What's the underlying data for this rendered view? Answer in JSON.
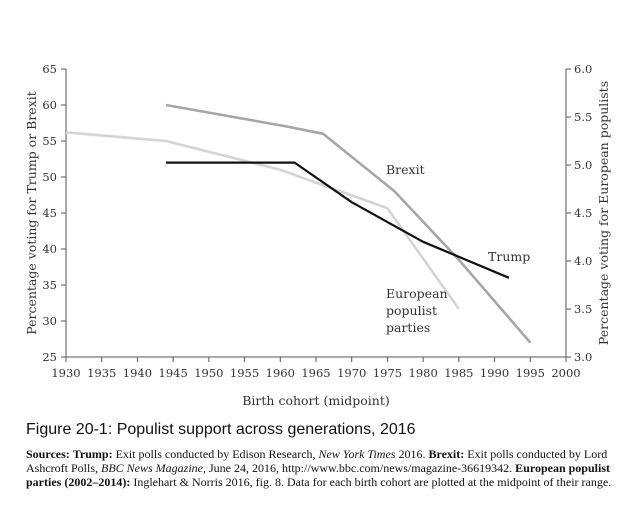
{
  "chart_data": {
    "type": "line",
    "title": "",
    "xlabel": "Birth cohort (midpoint)",
    "ylabel_left": "Percentage voting for Trump or Brexit",
    "ylabel_right": "Percentage voting for European populists",
    "xlim": [
      1930,
      2000
    ],
    "xticks": [
      "1930",
      "1935",
      "1940",
      "1945",
      "1950",
      "1955",
      "1960",
      "1965",
      "1970",
      "1975",
      "1980",
      "1985",
      "1990",
      "1995",
      "2000"
    ],
    "ylim_left": [
      25,
      65
    ],
    "yticks_left": [
      "25",
      "30",
      "35",
      "40",
      "45",
      "50",
      "55",
      "60",
      "65"
    ],
    "ylim_right": [
      3.0,
      6.0
    ],
    "yticks_right": [
      "3.0",
      "3.5",
      "4.0",
      "4.5",
      "5.0",
      "5.5",
      "6.0"
    ],
    "grid": false,
    "series": [
      {
        "name": "Brexit",
        "axis": "left",
        "color": "#a6a6a6",
        "x": [
          1944,
          1961,
          1966,
          1976,
          1985,
          1995
        ],
        "y": [
          60,
          57,
          56,
          48,
          38.5,
          27
        ]
      },
      {
        "name": "Trump",
        "axis": "left",
        "color": "#111111",
        "x": [
          1944,
          1962,
          1970,
          1980,
          1992
        ],
        "y": [
          52,
          52,
          46.5,
          41,
          36
        ]
      },
      {
        "name": "European populist parties",
        "axis": "right",
        "color": "#d4d4d4",
        "x": [
          1930,
          1944,
          1960,
          1975,
          1985
        ],
        "y": [
          5.34,
          5.25,
          4.95,
          4.55,
          3.5
        ]
      }
    ]
  },
  "labels": {
    "brexit": "Brexit",
    "trump": "Trump",
    "european_line1": "European",
    "european_line2": "populist",
    "european_line3": "parties"
  },
  "caption": "Figure 20-1: Populist support across generations, 2016",
  "sources": {
    "sources_label": "Sources:",
    "trump_label": "Trump:",
    "trump_text": "Exit polls conducted by Edison Research,",
    "trump_pub": "New York Times",
    "trump_year": "2016.",
    "brexit_label": "Brexit:",
    "brexit_text": "Exit polls conducted by Lord Ashcroft Polls,",
    "brexit_pub": "BBC News Magazine",
    "brexit_date": ", June 24, 2016, http://www.bbc.com/news/magazine-36619342.",
    "european_label": "European populist parties (2002–2014):",
    "european_text": "Inglehart & Norris 2016, fig. 8. Data for each birth cohort are plotted at the midpoint of their range."
  }
}
